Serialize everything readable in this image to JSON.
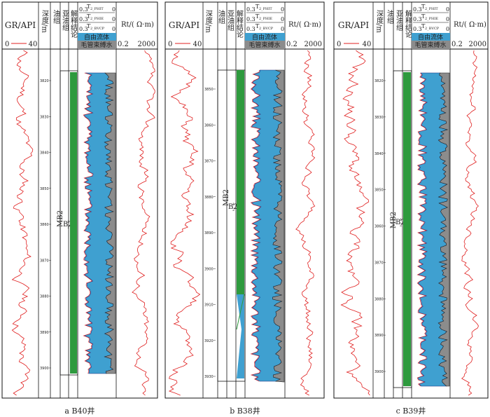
{
  "colors": {
    "gr_curve": "#e02020",
    "rt_curve": "#e02020",
    "free_fluid": "#3fa0d0",
    "bound_water": "#8c8c8c",
    "interpretation": "#2e9a3e",
    "frame": "#111111"
  },
  "header": {
    "gr_title": "GR/API",
    "gr_min": "0",
    "gr_max": "40",
    "depth_title": "深度/m",
    "oil_group_title": "油组",
    "sub_oil_group_title": "亚油组",
    "interp_title": "解释结论",
    "t2_phit": "T",
    "t2_phit_sub": "2_PHIT",
    "t2_phie": "T",
    "t2_phie_sub": "2_PHIE",
    "t2_bvcp": "T",
    "t2_bvcp_sub": "2_BVCP",
    "scale_left": "0.3",
    "scale_right": "0",
    "free_fluid_label": "自由流体",
    "bound_water_label": "毛管束缚水",
    "rt_title": "Rt/( Ω·m)",
    "rt_min": "0.2",
    "rt_max": "2000"
  },
  "wells": [
    {
      "caption": "a  B40井",
      "oil_group": "MB2",
      "sub_group": "B2",
      "depth_ticks": [
        "3820",
        "3830",
        "3840",
        "3850",
        "3860",
        "3870",
        "3880",
        "3890",
        "3900"
      ]
    },
    {
      "caption": "b  B38井",
      "oil_group": "MB2",
      "sub_group": "B2",
      "depth_ticks": [
        "3850",
        "3860",
        "3870",
        "3880",
        "3890",
        "3900",
        "3910",
        "3920",
        "3930"
      ]
    },
    {
      "caption": "c  B39井",
      "oil_group": "MB2",
      "sub_group": "B2",
      "depth_ticks": [
        "3820",
        "3830",
        "3840",
        "3850",
        "3860",
        "3870",
        "3880",
        "3890",
        "3900"
      ]
    }
  ]
}
